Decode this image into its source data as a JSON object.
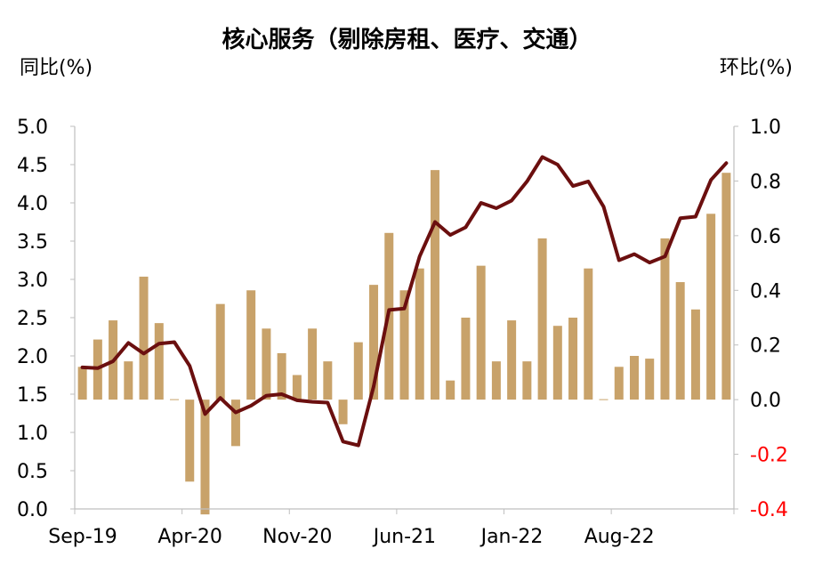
{
  "chart_data": {
    "type": "bar+line",
    "title": "核心服务（剔除房租、医疗、交通）",
    "ylabel_left": "同比(%)",
    "ylabel_right": "环比(%)",
    "ylim_left": [
      0,
      5
    ],
    "ylim_right": [
      -0.4,
      1.0
    ],
    "yticks_left": [
      "0.0",
      "0.5",
      "1.0",
      "1.5",
      "2.0",
      "2.5",
      "3.0",
      "3.5",
      "4.0",
      "4.5",
      "5.0"
    ],
    "yticks_right": [
      {
        "value": -0.4,
        "label": "-0.4",
        "color": "#ff0000"
      },
      {
        "value": -0.2,
        "label": "-0.2",
        "color": "#ff0000"
      },
      {
        "value": 0.0,
        "label": "0.0",
        "color": "#000000"
      },
      {
        "value": 0.2,
        "label": "0.2",
        "color": "#000000"
      },
      {
        "value": 0.4,
        "label": "0.4",
        "color": "#000000"
      },
      {
        "value": 0.6,
        "label": "0.6",
        "color": "#000000"
      },
      {
        "value": 0.8,
        "label": "0.8",
        "color": "#000000"
      },
      {
        "value": 1.0,
        "label": "1.0",
        "color": "#000000"
      }
    ],
    "x_tick_labels": [
      {
        "index": 0,
        "label": "Sep-19"
      },
      {
        "index": 7,
        "label": "Apr-20"
      },
      {
        "index": 14,
        "label": "Nov-20"
      },
      {
        "index": 21,
        "label": "Jun-21"
      },
      {
        "index": 28,
        "label": "Jan-22"
      },
      {
        "index": 35,
        "label": "Aug-22"
      }
    ],
    "series": [
      {
        "type": "bar",
        "axis": "right",
        "color": "#c8a26a",
        "values": [
          0.12,
          0.22,
          0.29,
          0.14,
          0.45,
          0.28,
          0.0,
          -0.3,
          -0.42,
          0.35,
          -0.17,
          0.4,
          0.26,
          0.17,
          0.09,
          0.26,
          0.14,
          -0.09,
          0.21,
          0.42,
          0.61,
          0.4,
          0.48,
          0.84,
          0.07,
          0.3,
          0.49,
          0.14,
          0.29,
          0.14,
          0.59,
          0.27,
          0.3,
          0.48,
          0.0,
          0.12,
          0.16,
          0.15,
          0.59,
          0.43,
          0.33,
          0.68,
          0.83
        ]
      },
      {
        "type": "line",
        "axis": "left",
        "color": "#6b0f0f",
        "values": [
          1.85,
          1.84,
          1.93,
          2.17,
          2.03,
          2.16,
          2.18,
          1.87,
          1.24,
          1.45,
          1.26,
          1.35,
          1.48,
          1.5,
          1.42,
          1.4,
          1.39,
          0.88,
          0.83,
          1.6,
          2.6,
          2.62,
          3.3,
          3.75,
          3.58,
          3.68,
          4.0,
          3.93,
          4.03,
          4.28,
          4.6,
          4.5,
          4.22,
          4.28,
          3.95,
          3.25,
          3.33,
          3.22,
          3.3,
          3.8,
          3.82,
          4.3,
          4.52
        ]
      }
    ]
  }
}
